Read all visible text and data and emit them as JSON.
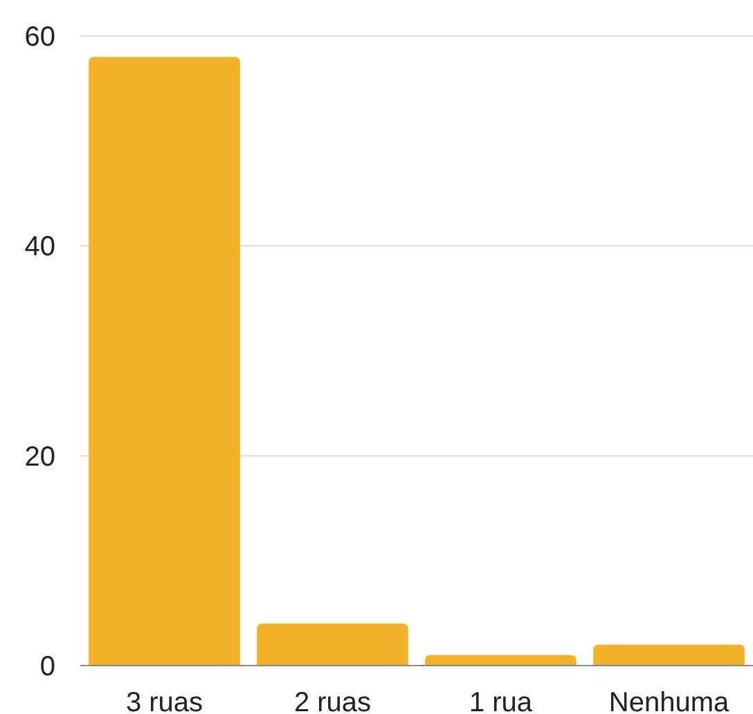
{
  "chart_data": {
    "type": "bar",
    "categories": [
      "3 ruas",
      "2 ruas",
      "1 rua",
      "Nenhuma"
    ],
    "values": [
      58,
      4,
      1,
      2
    ],
    "color": "#f2b22a",
    "ylim": [
      0,
      60
    ],
    "yticks": [
      0,
      20,
      40,
      60
    ],
    "grid": "y"
  }
}
